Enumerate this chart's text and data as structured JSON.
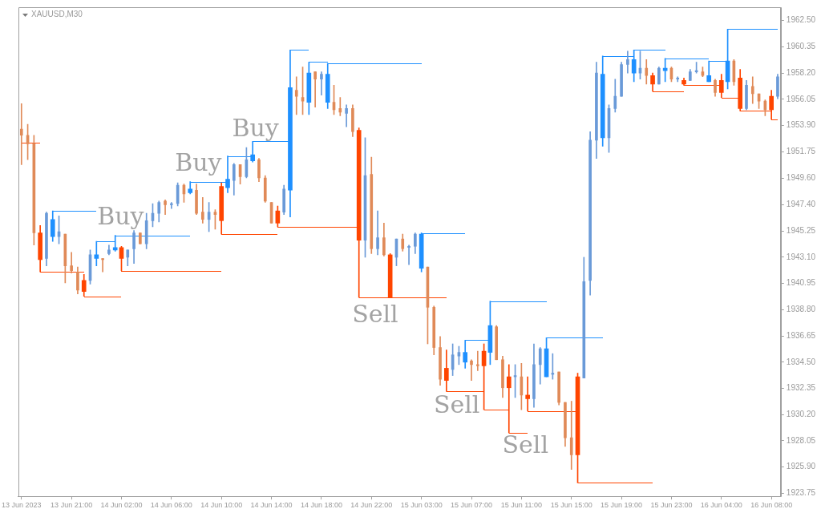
{
  "chart_data": {
    "type": "candlestick",
    "title": "XAUUSD,M30",
    "categories": [
      "13 Jun 2023",
      null,
      null,
      null,
      null,
      null,
      null,
      null,
      "13 Jun 21:00",
      null,
      null,
      null,
      null,
      null,
      null,
      null,
      "14 Jun 02:00",
      null,
      null,
      null,
      null,
      null,
      null,
      null,
      "14 Jun 06:00",
      null,
      null,
      null,
      null,
      null,
      null,
      null,
      "14 Jun 10:00",
      null,
      null,
      null,
      null,
      null,
      null,
      null,
      "14 Jun 14:00",
      null,
      null,
      null,
      null,
      null,
      null,
      null,
      "14 Jun 18:00",
      null,
      null,
      null,
      null,
      null,
      null,
      null,
      "14 Jun 22:00",
      null,
      null,
      null,
      null,
      null,
      null,
      null,
      "15 Jun 03:00",
      null,
      null,
      null,
      null,
      null,
      null,
      null,
      "15 Jun 07:00",
      null,
      null,
      null,
      null,
      null,
      null,
      null,
      "15 Jun 11:00",
      null,
      null,
      null,
      null,
      null,
      null,
      null,
      "15 Jun 15:00",
      null,
      null,
      null,
      null,
      null,
      null,
      null,
      "15 Jun 19:00",
      null,
      null,
      null,
      null,
      null,
      null,
      null,
      "15 Jun 23:00",
      null,
      null,
      null,
      null,
      null,
      null,
      null,
      "16 Jun 04:00",
      null,
      null,
      null,
      null,
      null,
      null,
      null,
      "16 Jun 08:00",
      null
    ],
    "ohlc": [
      [
        1953.6,
        1955.7,
        1950.7,
        1953.1
      ],
      [
        1953.1,
        1954.0,
        1951.1,
        1952.4
      ],
      [
        1952.4,
        1953.1,
        1944.1,
        1945.1
      ],
      null,
      [
        1943.0,
        1946.8,
        1942.4,
        1946.7
      ],
      null,
      [
        1944.8,
        1946.5,
        1944.2,
        1945.2
      ],
      [
        1945.0,
        1945.0,
        1941.0,
        1942.4
      ],
      [
        1942.4,
        1943.5,
        1941.8,
        1942.0
      ],
      [
        1941.9,
        1942.3,
        1940.1,
        1940.4
      ],
      null,
      [
        1941.2,
        1943.7,
        1940.9,
        1943.3
      ],
      null,
      [
        1943.0,
        1943.0,
        1941.9,
        1942.9
      ],
      [
        1943.4,
        1944.1,
        1943.3,
        1943.7
      ],
      null,
      null,
      [
        1943.1,
        1943.7,
        1942.4,
        1943.7
      ],
      [
        1943.8,
        1945.3,
        1942.6,
        1945.1
      ],
      [
        1945.1,
        1945.1,
        1944.2,
        1944.2
      ],
      [
        1944.2,
        1946.7,
        1943.8,
        1946.1
      ],
      [
        1946.1,
        1947.5,
        1945.6,
        1946.7
      ],
      [
        1946.7,
        1947.7,
        1946.0,
        1947.6
      ],
      [
        1947.7,
        1947.8,
        1946.6,
        1947.4
      ],
      [
        1947.4,
        1947.6,
        1947.1,
        1947.5
      ],
      [
        1947.5,
        1949.2,
        1947.3,
        1949.0
      ],
      [
        1949.0,
        1949.1,
        1947.6,
        1948.3
      ],
      null,
      [
        1948.6,
        1949.1,
        1946.6,
        1946.7
      ],
      [
        1946.8,
        1948.0,
        1945.9,
        1946.2
      ],
      [
        1946.2,
        1947.6,
        1945.2,
        1946.8
      ],
      [
        1946.8,
        1947.0,
        1945.4,
        1946.6
      ],
      null,
      null,
      [
        1949.4,
        1950.8,
        1948.2,
        1950.7
      ],
      [
        1950.7,
        1950.7,
        1949.1,
        1949.7
      ],
      [
        1949.7,
        1952.1,
        1949.6,
        1951.1
      ],
      null,
      [
        1951.1,
        1951.2,
        1949.3,
        1949.6
      ],
      [
        1949.6,
        1949.8,
        1947.6,
        1947.7
      ],
      [
        1947.6,
        1947.6,
        1945.9,
        1945.9
      ],
      null,
      [
        1946.8,
        1949.0,
        1946.6,
        1948.7
      ],
      null,
      [
        1956.8,
        1957.9,
        1954.8,
        1956.3
      ],
      [
        1956.2,
        1958.7,
        1954.8,
        1955.9
      ],
      null,
      [
        1958.3,
        1958.3,
        1955.4,
        1957.7
      ],
      [
        1957.7,
        1958.3,
        1956.4,
        1958.1
      ],
      null,
      [
        1955.8,
        1957.2,
        1954.8,
        1955.2
      ],
      [
        1955.3,
        1956.2,
        1954.7,
        1955.0
      ],
      [
        1954.9,
        1955.6,
        1953.8,
        1955.3
      ],
      [
        1955.3,
        1955.6,
        1953.0,
        1953.4
      ],
      null,
      [
        1944.5,
        1952.9,
        1943.1,
        1949.8
      ],
      [
        1949.9,
        1951.3,
        1943.4,
        1943.8
      ],
      [
        1943.8,
        1946.9,
        1943.3,
        1944.7
      ],
      [
        1944.7,
        1945.9,
        1943.2,
        1943.3
      ],
      null,
      [
        1943.1,
        1944.6,
        1942.4,
        1944.6
      ],
      [
        1944.6,
        1945.0,
        1943.6,
        1943.8
      ],
      [
        1943.9,
        1944.1,
        1942.5,
        1944.0
      ],
      [
        1944.0,
        1945.1,
        1943.4,
        1945.0
      ],
      null,
      [
        1942.3,
        1942.3,
        1936.0,
        1939.0
      ],
      [
        1939.0,
        1939.1,
        1935.1,
        1935.7
      ],
      [
        1935.7,
        1936.6,
        1932.6,
        1933.1
      ],
      null,
      [
        1933.9,
        1936.0,
        1933.4,
        1935.1
      ],
      [
        1935.0,
        1935.8,
        1934.3,
        1935.3
      ],
      null,
      [
        1934.6,
        1934.7,
        1933.0,
        1934.3
      ],
      [
        1934.3,
        1935.4,
        1933.8,
        1934.2
      ],
      null,
      null,
      [
        1937.4,
        1937.5,
        1934.7,
        1934.7
      ],
      [
        1934.7,
        1935.0,
        1931.6,
        1932.4
      ],
      null,
      [
        1933.3,
        1934.3,
        1931.6,
        1933.4
      ],
      [
        1933.3,
        1934.4,
        1930.6,
        1931.8
      ],
      null,
      [
        1931.5,
        1936.0,
        1930.8,
        1934.3
      ],
      [
        1934.3,
        1935.7,
        1932.7,
        1935.6
      ],
      null,
      [
        1933.5,
        1935.2,
        1933.1,
        1933.6
      ],
      [
        1933.7,
        1933.7,
        1931.0,
        1931.2
      ],
      [
        1931.2,
        1931.2,
        1927.6,
        1928.3
      ],
      [
        1928.3,
        1931.3,
        1925.7,
        1926.9
      ],
      null,
      [
        1933.2,
        1943.1,
        1933.2,
        1941.1
      ],
      [
        1941.2,
        1953.4,
        1940.0,
        1952.7
      ],
      [
        1952.7,
        1959.1,
        1951.2,
        1958.2
      ],
      null,
      [
        1952.9,
        1955.6,
        1951.7,
        1955.3
      ],
      [
        1955.3,
        1957.7,
        1955.0,
        1956.3
      ],
      [
        1956.3,
        1959.1,
        1956.3,
        1958.9
      ],
      [
        1958.9,
        1960.0,
        1958.2,
        1959.3
      ],
      null,
      [
        1958.2,
        1960.0,
        1957.7,
        1958.6
      ],
      [
        1958.6,
        1959.3,
        1957.3,
        1958.0
      ],
      null,
      [
        1957.3,
        1958.7,
        1957.3,
        1958.6
      ],
      null,
      [
        1958.6,
        1958.7,
        1957.5,
        1957.7
      ],
      [
        1957.7,
        1957.9,
        1957.5,
        1957.8
      ],
      null,
      [
        1957.6,
        1958.5,
        1957.6,
        1958.3
      ],
      [
        1958.3,
        1959.1,
        1958.2,
        1958.4
      ],
      [
        1958.3,
        1958.7,
        1957.9,
        1958.0
      ],
      null,
      [
        1957.6,
        1957.7,
        1956.3,
        1956.6
      ],
      null,
      null,
      [
        1959.2,
        1959.3,
        1957.2,
        1957.5
      ],
      null,
      [
        1955.3,
        1957.6,
        1955.2,
        1957.2
      ],
      [
        1957.1,
        1957.9,
        1955.7,
        1956.5
      ],
      [
        1956.5,
        1956.5,
        1955.3,
        1955.9
      ],
      [
        1955.9,
        1956.0,
        1954.7,
        1955.2
      ],
      null,
      [
        1956.3,
        1958.1,
        1956.1,
        1957.9
      ]
    ],
    "colors": [
      "#e08a58",
      "#e08a58",
      "#e08a58",
      null,
      "#6a9ad8",
      null,
      "#6a9ad8",
      "#e08a58",
      "#e08a58",
      "#e08a58",
      null,
      "#6a9ad8",
      null,
      "#e08a58",
      "#6a9ad8",
      null,
      null,
      "#6a9ad8",
      "#6a9ad8",
      "#e08a58",
      "#6a9ad8",
      "#6a9ad8",
      "#6a9ad8",
      "#e08a58",
      "#6a9ad8",
      "#6a9ad8",
      "#e08a58",
      null,
      "#e08a58",
      "#e08a58",
      "#6a9ad8",
      "#e08a58",
      null,
      null,
      "#6a9ad8",
      "#e08a58",
      "#6a9ad8",
      null,
      "#e08a58",
      "#e08a58",
      "#e08a58",
      null,
      "#6a9ad8",
      null,
      "#e08a58",
      "#e08a58",
      null,
      "#e08a58",
      "#6a9ad8",
      null,
      "#e08a58",
      "#e08a58",
      "#6a9ad8",
      "#e08a58",
      null,
      "#6a9ad8",
      "#e08a58",
      "#6a9ad8",
      "#e08a58",
      null,
      "#6a9ad8",
      "#e08a58",
      "#6a9ad8",
      "#6a9ad8",
      null,
      "#e08a58",
      "#e08a58",
      "#e08a58",
      null,
      "#6a9ad8",
      "#6a9ad8",
      null,
      "#e08a58",
      "#e08a58",
      null,
      null,
      "#e08a58",
      "#e08a58",
      null,
      "#6a9ad8",
      "#e08a58",
      null,
      "#6a9ad8",
      "#6a9ad8",
      null,
      "#6a9ad8",
      "#e08a58",
      "#e08a58",
      "#e08a58",
      null,
      "#6a9ad8",
      "#6a9ad8",
      "#6a9ad8",
      null,
      "#6a9ad8",
      "#6a9ad8",
      "#6a9ad8",
      "#6a9ad8",
      null,
      "#6a9ad8",
      "#e08a58",
      null,
      "#6a9ad8",
      null,
      "#e08a58",
      "#6a9ad8",
      null,
      "#6a9ad8",
      "#6a9ad8",
      "#e08a58",
      null,
      "#e08a58",
      null,
      null,
      "#e08a58",
      null,
      "#6a9ad8",
      "#e08a58",
      "#e08a58",
      "#e08a58",
      null,
      "#6a9ad8"
    ],
    "series": [
      {
        "type": "candlestick",
        "color": "#1e90ff",
        "ohlc": [
          null,
          null,
          null,
          null,
          null,
          [
            1944.8,
            1946.9,
            1944.4,
            1946.2
          ],
          null,
          null,
          null,
          null,
          null,
          null,
          [
            1943.0,
            1944.4,
            1942.4,
            1943.3
          ],
          null,
          null,
          [
            1943.7,
            1944.9,
            1943.6,
            1943.9
          ],
          null,
          null,
          null,
          null,
          null,
          null,
          null,
          null,
          null,
          null,
          null,
          [
            1948.4,
            1949.3,
            1948.3,
            1948.7
          ],
          null,
          null,
          null,
          null,
          null,
          [
            1948.8,
            1951.4,
            1948.4,
            1949.5
          ],
          null,
          null,
          null,
          [
            1951.0,
            1952.6,
            1950.9,
            1951.5
          ],
          null,
          null,
          null,
          null,
          null,
          [
            1948.6,
            1960.1,
            1946.4,
            1957.0
          ],
          null,
          null,
          [
            1955.8,
            1959.1,
            1954.8,
            1958.2
          ],
          null,
          null,
          [
            1955.8,
            1959.0,
            1955.3,
            1958.1
          ],
          null,
          null,
          null,
          null,
          null,
          null,
          null,
          null,
          null,
          null,
          null,
          null,
          null,
          null,
          [
            1942.2,
            1945.1,
            1941.9,
            1945.0
          ],
          null,
          null,
          null,
          null,
          null,
          null,
          [
            1934.5,
            1936.3,
            1934.0,
            1935.3
          ],
          null,
          null,
          null,
          [
            1935.3,
            1939.5,
            1934.3,
            1937.5
          ],
          null,
          null,
          null,
          null,
          null,
          null,
          null,
          null,
          [
            1933.3,
            1936.5,
            1933.3,
            1935.6
          ],
          null,
          null,
          null,
          null,
          null,
          null,
          null,
          null,
          [
            1952.9,
            1959.6,
            1952.2,
            1958.1
          ],
          null,
          null,
          null,
          null,
          [
            1958.2,
            1960.1,
            1957.5,
            1959.3
          ],
          null,
          null,
          null,
          null,
          [
            1958.4,
            1959.4,
            1957.5,
            1958.6
          ],
          null,
          null,
          null,
          null,
          null,
          null,
          [
            1957.5,
            1959.2,
            1957.5,
            1958.0
          ],
          null,
          null,
          [
            1957.5,
            1961.8,
            1956.9,
            1959.2
          ],
          null,
          null,
          null,
          null,
          null,
          null,
          null,
          null
        ]
      },
      {
        "type": "candlestick",
        "color": "#ff4500",
        "ohlc": [
          null,
          null,
          null,
          [
            1945.1,
            1945.7,
            1941.9,
            1942.9
          ],
          null,
          null,
          null,
          null,
          null,
          null,
          [
            1941.2,
            1941.7,
            1939.9,
            1940.3
          ],
          null,
          null,
          null,
          null,
          null,
          [
            1943.9,
            1944.0,
            1942.0,
            1943.0
          ],
          null,
          null,
          null,
          null,
          null,
          null,
          null,
          null,
          null,
          null,
          null,
          null,
          null,
          null,
          null,
          [
            1948.9,
            1949.2,
            1945.0,
            1946.1
          ],
          null,
          null,
          null,
          null,
          null,
          null,
          null,
          null,
          [
            1946.9,
            1947.3,
            1945.6,
            1945.9
          ],
          null,
          null,
          null,
          null,
          null,
          null,
          null,
          null,
          null,
          null,
          null,
          null,
          [
            1953.5,
            1953.7,
            1939.8,
            1944.5
          ],
          null,
          null,
          null,
          null,
          [
            1943.3,
            1943.4,
            1939.8,
            1939.8
          ],
          null,
          null,
          null,
          null,
          null,
          null,
          null,
          null,
          [
            1934.0,
            1935.5,
            1932.1,
            1933.0
          ],
          null,
          null,
          null,
          null,
          null,
          [
            1935.4,
            1936.0,
            1930.6,
            1934.2
          ],
          null,
          null,
          null,
          [
            1933.3,
            1934.3,
            1928.7,
            1932.4
          ],
          null,
          null,
          [
            1931.8,
            1933.3,
            1930.5,
            1931.5
          ],
          null,
          null,
          null,
          null,
          null,
          null,
          null,
          [
            1933.3,
            1933.6,
            1924.6,
            1926.9
          ],
          null,
          null,
          null,
          null,
          null,
          null,
          null,
          null,
          null,
          null,
          null,
          [
            1958.0,
            1958.2,
            1956.7,
            1957.3
          ],
          null,
          null,
          null,
          null,
          [
            1957.6,
            1957.8,
            1957.2,
            1957.3
          ],
          null,
          null,
          null,
          null,
          null,
          [
            1957.6,
            1958.1,
            1956.2,
            1956.6
          ],
          null,
          null,
          [
            1957.8,
            1958.5,
            1955.1,
            1955.3
          ],
          null,
          null,
          null,
          null,
          [
            1956.3,
            1956.8,
            1954.4,
            1955.2
          ],
          null
        ]
      },
      {
        "type": "line",
        "color": "#1e90ff",
        "values": [
          null,
          null,
          null,
          null,
          null,
          1946.9,
          1946.9,
          1946.9,
          1946.9,
          1946.9,
          1946.9,
          1946.9,
          1946.9,
          null,
          null,
          1944.9,
          1944.9,
          1944.9,
          1944.9,
          1944.9,
          1944.9,
          1944.9,
          1944.9,
          1944.9,
          1944.9,
          1944.9,
          1944.9,
          1944.9,
          null,
          null,
          null,
          null,
          null,
          1951.4,
          1951.4,
          1951.4,
          1951.4,
          1951.4,
          null,
          null,
          null,
          null,
          null,
          1960.1,
          1960.1,
          1960.1,
          1960.1,
          null,
          null,
          1959.0,
          1959.0,
          1959.0,
          1959.0,
          1959.0,
          1959.0,
          1959.0,
          1959.0,
          1959.0,
          1959.0,
          1959.0,
          1959.0,
          1959.0,
          1959.0,
          1959.0,
          1959.0,
          null,
          null,
          null,
          null,
          null,
          null,
          1936.3,
          1936.3,
          1936.3,
          1936.3,
          1936.3,
          null,
          null,
          null,
          null,
          null,
          null,
          null,
          null,
          1936.5,
          1936.5,
          1936.5,
          1936.5,
          1936.5,
          1936.5,
          1936.5,
          1936.5,
          1936.5,
          1936.5,
          null,
          null,
          null,
          null,
          1960.1,
          1960.1,
          1960.1,
          1960.1,
          1960.1,
          1960.1,
          null,
          null,
          null,
          null,
          null,
          null,
          1959.2,
          1959.2,
          1959.2,
          1959.2,
          null,
          null,
          null,
          null,
          null,
          null,
          null,
          null
        ]
      },
      {
        "type": "line",
        "color": "#1e90ff",
        "values": [
          null,
          null,
          null,
          null,
          null,
          null,
          null,
          null,
          null,
          null,
          null,
          null,
          1944.4,
          1944.4,
          1944.4,
          1944.4,
          null,
          null,
          null,
          null,
          null,
          null,
          null,
          null,
          null,
          null,
          null,
          1949.3,
          1949.3,
          1949.3,
          1949.3,
          1949.3,
          1949.3,
          1949.3,
          null,
          null,
          null,
          1952.6,
          1952.6,
          1952.6,
          1952.6,
          1952.6,
          1952.6,
          1952.6,
          null,
          null,
          1959.1,
          1959.1,
          1959.1,
          1959.1,
          null,
          null,
          null,
          null,
          null,
          null,
          null,
          null,
          null,
          null,
          null,
          null,
          null,
          null,
          1945.1,
          1945.1,
          1945.1,
          1945.1,
          1945.1,
          1945.1,
          1945.1,
          1945.1,
          null,
          null,
          null,
          1939.5,
          1939.5,
          1939.5,
          1939.5,
          1939.5,
          1939.5,
          1939.5,
          1939.5,
          1939.5,
          1939.5,
          null,
          null,
          null,
          null,
          null,
          null,
          null,
          null,
          1959.6,
          1959.6,
          1959.6,
          1959.6,
          1959.6,
          1959.6,
          null,
          null,
          null,
          null,
          1959.4,
          1959.4,
          1959.4,
          1959.4,
          1959.4,
          1959.4,
          1959.4,
          1959.4,
          null,
          null,
          1961.8,
          1961.8,
          1961.8,
          1961.8,
          1961.8,
          1961.8,
          1961.8,
          1961.8,
          1961.8
        ]
      },
      {
        "type": "line",
        "color": "#ff4500",
        "values": [
          1952.5,
          1952.5,
          1952.5,
          1952.5,
          null,
          null,
          null,
          null,
          null,
          null,
          1939.9,
          1939.9,
          1939.9,
          1939.9,
          1939.9,
          1939.9,
          1939.9,
          null,
          null,
          null,
          null,
          null,
          null,
          null,
          null,
          null,
          null,
          null,
          null,
          null,
          null,
          null,
          1945.0,
          1945.0,
          1945.0,
          1945.0,
          1945.0,
          1945.0,
          1945.0,
          1945.0,
          1945.0,
          1945.0,
          null,
          null,
          null,
          null,
          null,
          null,
          null,
          null,
          null,
          null,
          null,
          null,
          1939.8,
          1939.8,
          1939.8,
          1939.8,
          1939.8,
          1939.8,
          1939.8,
          1939.8,
          1939.8,
          1939.8,
          1939.8,
          1939.8,
          1939.8,
          1939.8,
          1939.8,
          null,
          null,
          null,
          null,
          null,
          1930.6,
          1930.6,
          1930.6,
          1930.6,
          1930.6,
          null,
          null,
          1930.5,
          1930.5,
          1930.5,
          1930.5,
          1930.5,
          1930.5,
          1930.5,
          1930.5,
          1930.5,
          null,
          null,
          null,
          null,
          null,
          null,
          null,
          null,
          null,
          null,
          null,
          1956.7,
          1956.7,
          1956.7,
          1956.7,
          1956.7,
          1956.7,
          null,
          null,
          null,
          null,
          null,
          1956.2,
          1956.2,
          1956.2,
          1956.2,
          null,
          null,
          null,
          null,
          1954.4,
          1954.4
        ]
      },
      {
        "type": "line",
        "color": "#ff4500",
        "values": [
          null,
          null,
          null,
          1941.9,
          1941.9,
          1941.9,
          1941.9,
          1941.9,
          1941.9,
          1941.9,
          1941.9,
          null,
          null,
          null,
          null,
          null,
          1942.0,
          1942.0,
          1942.0,
          1942.0,
          1942.0,
          1942.0,
          1942.0,
          1942.0,
          1942.0,
          1942.0,
          1942.0,
          1942.0,
          1942.0,
          1942.0,
          1942.0,
          1942.0,
          1942.0,
          null,
          null,
          null,
          null,
          null,
          null,
          null,
          null,
          1945.6,
          1945.6,
          1945.6,
          1945.6,
          1945.6,
          1945.6,
          1945.6,
          1945.6,
          1945.6,
          1945.6,
          1945.6,
          1945.6,
          1945.6,
          1945.6,
          null,
          null,
          null,
          null,
          null,
          null,
          null,
          null,
          null,
          null,
          null,
          null,
          null,
          1932.1,
          1932.1,
          1932.1,
          1932.1,
          1932.1,
          1932.1,
          1932.1,
          null,
          null,
          null,
          1928.7,
          1928.7,
          1928.7,
          1928.7,
          null,
          null,
          null,
          null,
          null,
          null,
          null,
          1924.6,
          1924.6,
          1924.6,
          1924.6,
          1924.6,
          1924.6,
          1924.6,
          1924.6,
          1924.6,
          1924.6,
          1924.6,
          1924.6,
          1924.6,
          null,
          null,
          null,
          null,
          1957.2,
          1957.2,
          1957.2,
          1957.2,
          1957.2,
          1957.2,
          1957.2,
          null,
          null,
          1955.1,
          1955.1,
          1955.1,
          1955.1,
          1955.1,
          1955.1,
          null
        ]
      }
    ],
    "ylim": [
      1923.5,
      1963.6
    ],
    "yticks": [
      1923.75,
      {
        "value": 1925.9,
        "label": "1925.90"
      },
      1928.05,
      {
        "value": 1930.2,
        "label": "1930.20"
      },
      1932.35,
      {
        "value": 1934.5,
        "label": "1934.50"
      },
      1936.65,
      {
        "value": 1938.8,
        "label": "1938.80"
      },
      1940.95,
      {
        "value": 1943.1,
        "label": "1943.10"
      },
      1945.25,
      {
        "value": 1947.4,
        "label": "1947.40"
      },
      {
        "value": 1949.6,
        "label": "1949.60"
      },
      1951.75,
      {
        "value": 1953.9,
        "label": "1953.90"
      },
      1956.05,
      {
        "value": 1958.2,
        "label": "1958.20"
      },
      1960.35,
      {
        "value": 1962.5,
        "label": "1962.50"
      }
    ],
    "annotations": [
      "Buy",
      "Buy",
      "Buy",
      "Sell",
      "Sell",
      "Sell"
    ]
  }
}
